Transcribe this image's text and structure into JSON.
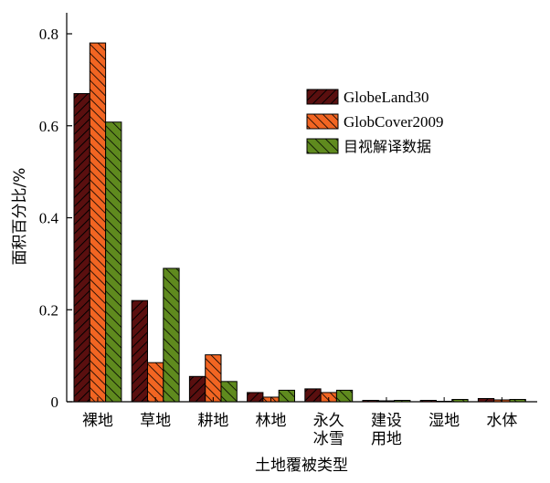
{
  "chart_data": {
    "type": "bar",
    "title": "",
    "xlabel": "土地覆被类型",
    "ylabel": "面积百分比/%",
    "ylim": [
      0,
      0.84
    ],
    "yticks": [
      "0",
      "0.2",
      "0.4",
      "0.6",
      "0.8"
    ],
    "categories": [
      [
        "裸地"
      ],
      [
        "草地"
      ],
      [
        "耕地"
      ],
      [
        "林地"
      ],
      [
        "永久",
        "冰雪"
      ],
      [
        "建设",
        "用地"
      ],
      [
        "湿地"
      ],
      [
        "水体"
      ]
    ],
    "series": [
      {
        "name": "GlobeLand30",
        "color": "#5a0f0f",
        "values": [
          0.67,
          0.22,
          0.055,
          0.02,
          0.028,
          0.003,
          0.003,
          0.007
        ]
      },
      {
        "name": "GlobCover2009",
        "color": "#f26522",
        "values": [
          0.78,
          0.085,
          0.102,
          0.01,
          0.02,
          0.002,
          0.001,
          0.004
        ]
      },
      {
        "name": "目视解译数据",
        "color": "#5f8a1e",
        "values": [
          0.608,
          0.29,
          0.044,
          0.025,
          0.025,
          0.003,
          0.005,
          0.005
        ]
      }
    ],
    "legend_position": "top-right",
    "grid": false
  }
}
